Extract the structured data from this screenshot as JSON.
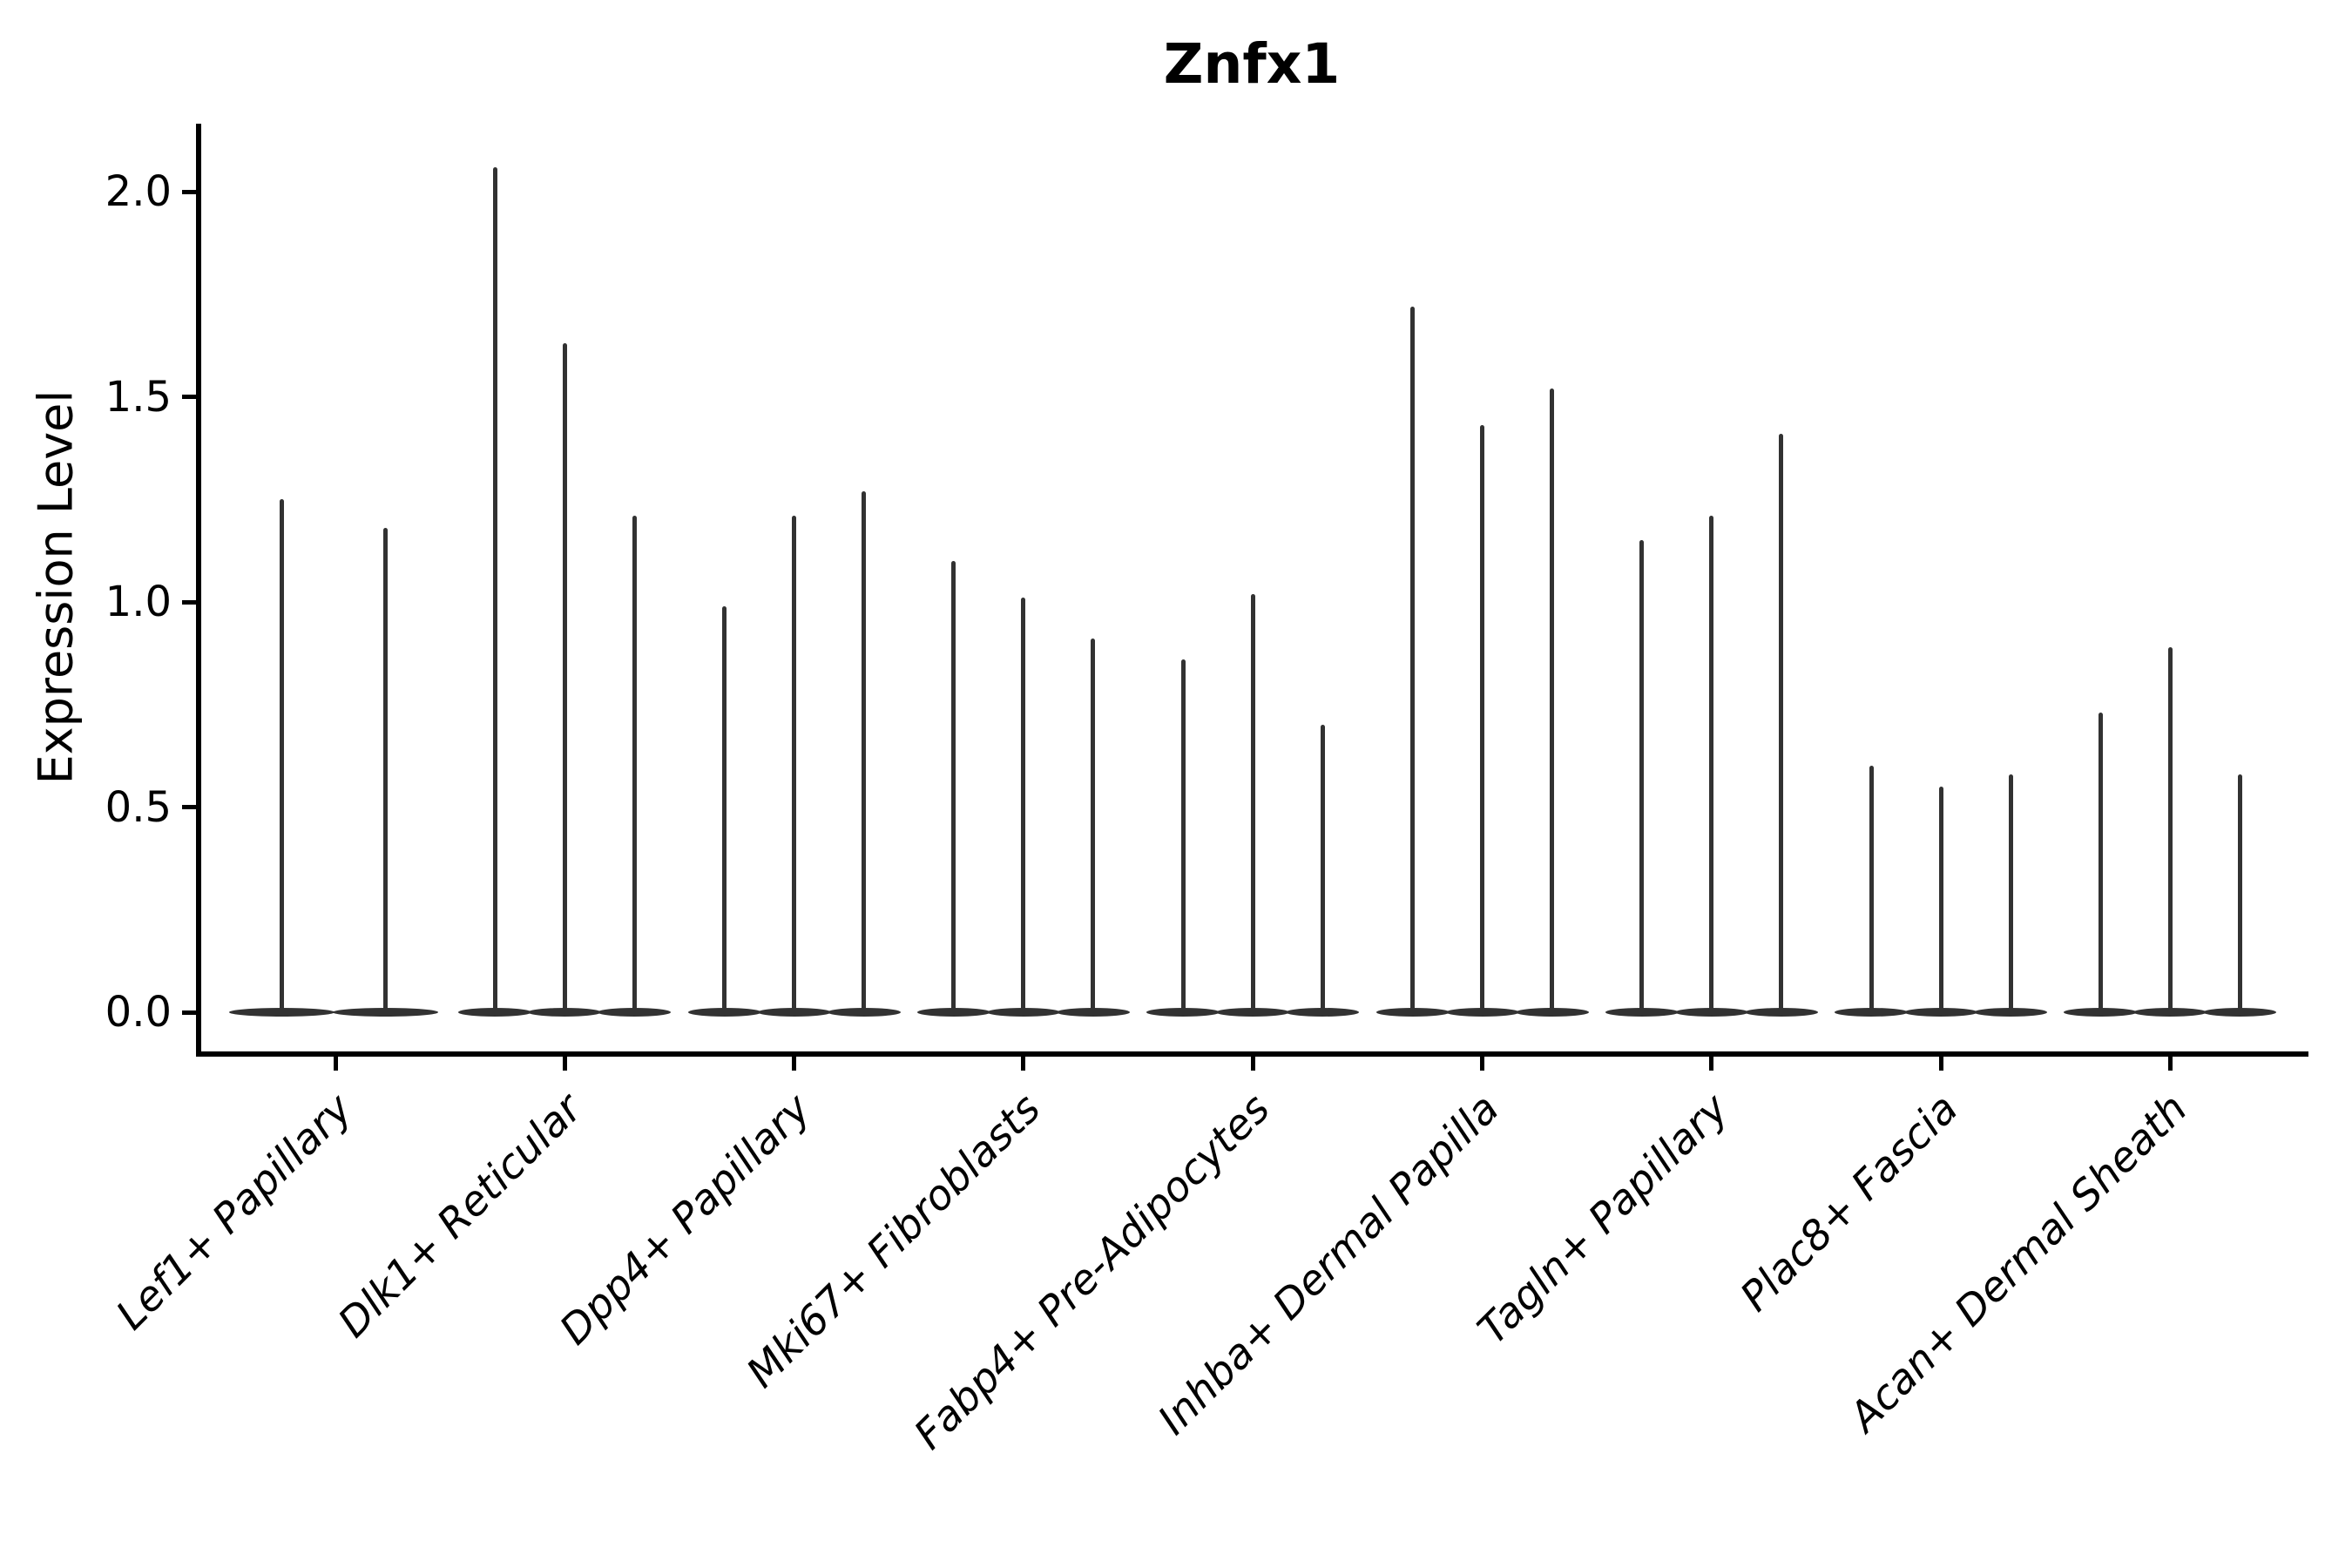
{
  "chart_data": {
    "type": "violin",
    "title": "Znfx1",
    "ylabel": "Expression Level",
    "xlabel": "",
    "ytick_labels": [
      "0.0",
      "0.5",
      "1.0",
      "1.5",
      "2.0"
    ],
    "ytick_values": [
      0.0,
      0.5,
      1.0,
      1.5,
      2.0
    ],
    "ylim": [
      -0.1,
      2.17
    ],
    "grid": false,
    "legend": null,
    "baseline_value": 0.0,
    "categories": [
      "Lef1+ Papillary",
      "Dlk1+ Reticular",
      "Dpp4+ Papillary",
      "Mki67+ Fibroblasts",
      "Fabp4+ Pre-Adipocytes",
      "Inhba+ Dermal Papilla",
      "Tagln+ Papillary",
      "Plac8+ Fascia",
      "Acan+ Dermal Sheath"
    ],
    "groups": [
      {
        "category": "Lef1+ Papillary",
        "violin_maxima": [
          1.25,
          1.18
        ]
      },
      {
        "category": "Dlk1+ Reticular",
        "violin_maxima": [
          2.06,
          1.63,
          1.21
        ]
      },
      {
        "category": "Dpp4+ Papillary",
        "violin_maxima": [
          0.99,
          1.21,
          1.27
        ]
      },
      {
        "category": "Mki67+ Fibroblasts",
        "violin_maxima": [
          1.1,
          1.01,
          0.91
        ]
      },
      {
        "category": "Fabp4+ Pre-Adipocytes",
        "violin_maxima": [
          0.86,
          1.02,
          0.7
        ]
      },
      {
        "category": "Inhba+ Dermal Papilla",
        "violin_maxima": [
          1.72,
          1.43,
          1.52
        ]
      },
      {
        "category": "Tagln+ Papillary",
        "violin_maxima": [
          1.15,
          1.21,
          1.41
        ]
      },
      {
        "category": "Plac8+ Fascia",
        "violin_maxima": [
          0.6,
          0.55,
          0.58
        ]
      },
      {
        "category": "Acan+ Dermal Sheath",
        "violin_maxima": [
          0.73,
          0.89,
          0.58
        ]
      }
    ]
  },
  "colors": {
    "violin": "#323232",
    "axis": "#000000",
    "text": "#000000",
    "background": "#ffffff"
  }
}
